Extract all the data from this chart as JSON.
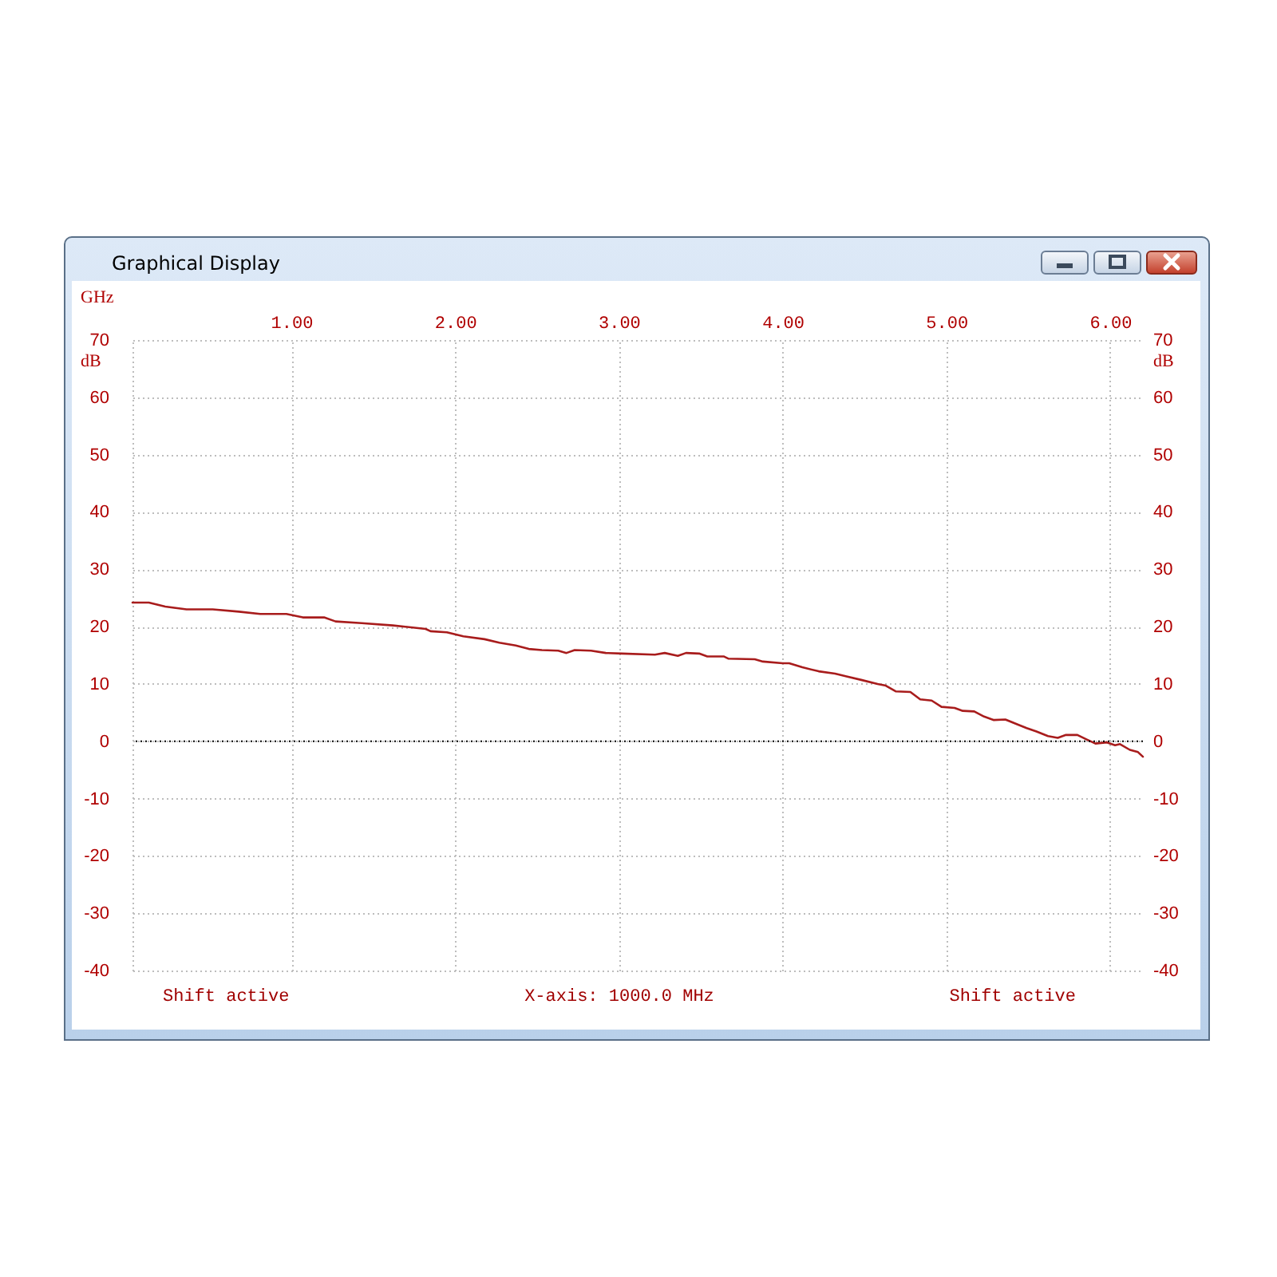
{
  "chart_data": {
    "type": "line",
    "title": "Graphical Display",
    "xlabel": "GHz",
    "ylabel": "dB",
    "y2label": "dB",
    "annotations": [
      "Shift active",
      "X-axis: 1000.0 MHz",
      "Shift active"
    ],
    "x": [
      0.03,
      0.13,
      0.23,
      0.36,
      0.52,
      0.68,
      0.81,
      0.97,
      1.07,
      1.2,
      1.27,
      1.43,
      1.62,
      1.82,
      1.85,
      1.95,
      2.05,
      2.18,
      2.27,
      2.37,
      2.45,
      2.53,
      2.63,
      2.68,
      2.73,
      2.83,
      2.92,
      3.02,
      3.22,
      3.28,
      3.36,
      3.41,
      3.49,
      3.54,
      3.64,
      3.67,
      3.83,
      3.88,
      4.0,
      4.04,
      4.12,
      4.22,
      4.32,
      4.39,
      4.48,
      4.58,
      4.63,
      4.69,
      4.78,
      4.84,
      4.91,
      4.97,
      5.05,
      5.1,
      5.17,
      5.23,
      5.29,
      5.36,
      5.42,
      5.49,
      5.55,
      5.62,
      5.68,
      5.73,
      5.8,
      5.85,
      5.91,
      5.98,
      6.03,
      6.06,
      6.12,
      6.17,
      6.2
    ],
    "series": [
      {
        "color": "#a81c1c",
        "values": [
          24.2,
          24.2,
          23.5,
          23.0,
          23.0,
          22.6,
          22.2,
          22.2,
          21.6,
          21.6,
          20.9,
          20.6,
          20.2,
          19.6,
          19.2,
          19.0,
          18.3,
          17.8,
          17.2,
          16.7,
          16.1,
          15.9,
          15.8,
          15.4,
          15.9,
          15.8,
          15.4,
          15.3,
          15.1,
          15.4,
          14.9,
          15.4,
          15.3,
          14.8,
          14.8,
          14.4,
          14.3,
          13.9,
          13.6,
          13.6,
          12.9,
          12.2,
          11.8,
          11.3,
          10.7,
          10.0,
          9.7,
          8.7,
          8.6,
          7.3,
          7.1,
          6.0,
          5.8,
          5.3,
          5.2,
          4.3,
          3.7,
          3.8,
          3.1,
          2.3,
          1.7,
          0.9,
          0.6,
          1.1,
          1.1,
          0.4,
          -0.4,
          -0.2,
          -0.7,
          -0.5,
          -1.5,
          -1.9,
          -2.7
        ]
      }
    ],
    "xlim": [
      0.03,
      6.2
    ],
    "xticks": [
      {
        "value": 1,
        "label": "1.00"
      },
      {
        "value": 2,
        "label": "2.00"
      },
      {
        "value": 3,
        "label": "3.00"
      },
      {
        "value": 4,
        "label": "4.00"
      },
      {
        "value": 5,
        "label": "5.00"
      },
      {
        "value": 6,
        "label": "6.00"
      }
    ],
    "ylim": [
      -40,
      70
    ],
    "yticks": [
      70,
      60,
      50,
      40,
      30,
      20,
      10,
      0,
      -10,
      -20,
      -30,
      -40
    ],
    "y2lim": [
      -40,
      70
    ],
    "y2ticks": [
      70,
      60,
      50,
      40,
      30,
      20,
      10,
      0,
      -10,
      -20,
      -30,
      -40
    ],
    "grid": true,
    "ref_lines": [
      {
        "axis": "y",
        "value": 0,
        "color": "#000000",
        "line_style": "dotted"
      }
    ]
  }
}
